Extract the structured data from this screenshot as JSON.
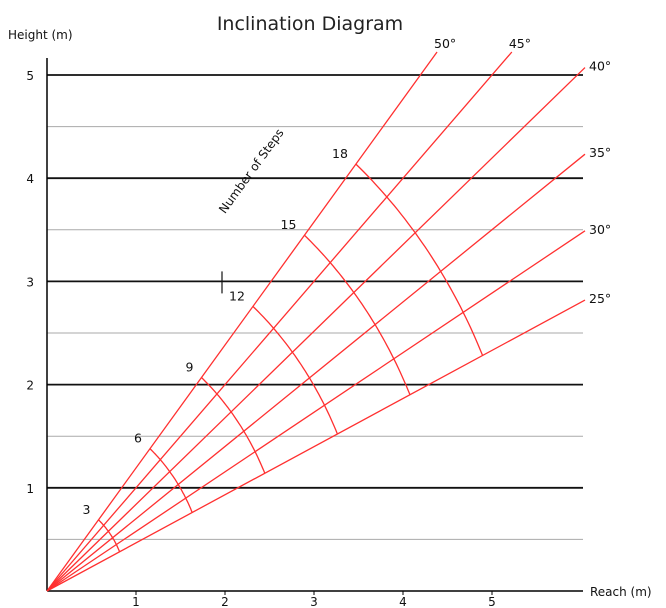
{
  "chart_data": {
    "type": "line",
    "title": "Inclination Diagram",
    "xlabel": "Reach (m)",
    "ylabel": "Height (m)",
    "xlim": [
      0,
      6
    ],
    "ylim": [
      0,
      5.2
    ],
    "x_ticks": [
      1,
      2,
      3,
      4,
      5
    ],
    "y_ticks": [
      1,
      2,
      3,
      4,
      5
    ],
    "major_grid_y": [
      1,
      2,
      3,
      4,
      5
    ],
    "minor_grid_y": [
      0.5,
      1.5,
      2.5,
      3.5,
      4.5
    ],
    "angles_deg": [
      25,
      30,
      35,
      40,
      45,
      50
    ],
    "angle_labels": [
      "25°",
      "30°",
      "35°",
      "40°",
      "45°",
      "50°"
    ],
    "steps": [
      3,
      6,
      9,
      12,
      15,
      18
    ],
    "step_labels": [
      "3",
      "6",
      "9",
      "12",
      "15",
      "18"
    ],
    "step_arc_radius_m": [
      0.9,
      1.8,
      2.7,
      3.6,
      4.5,
      5.4
    ],
    "steps_caption": "Number of Steps",
    "marker": {
      "x": 2,
      "y": 3
    },
    "colors": {
      "rays": "#ff3030",
      "major_grid": "#111111",
      "minor_grid": "#aaaaaa",
      "axis": "#000000"
    }
  }
}
